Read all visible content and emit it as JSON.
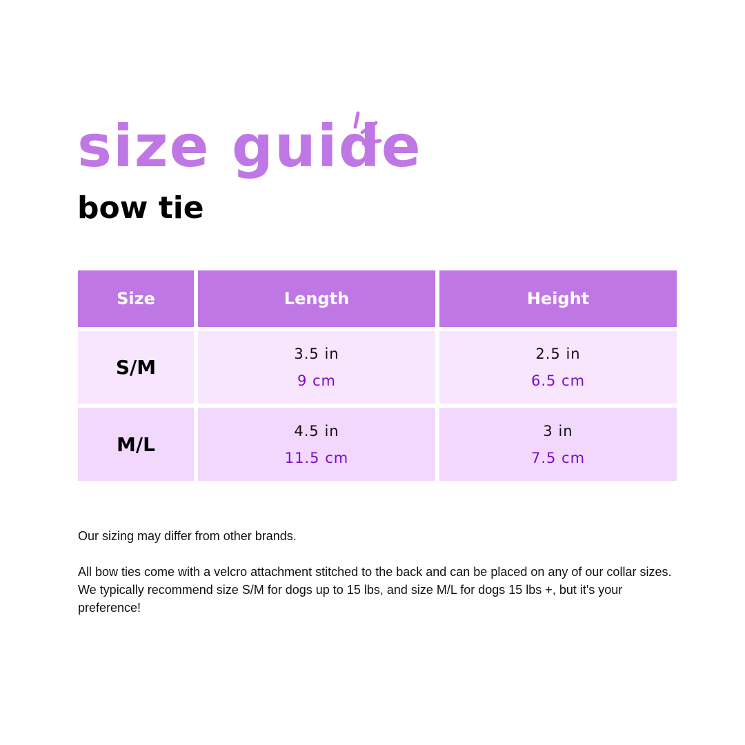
{
  "title": "size guide",
  "subtitle": "bow tie",
  "colors": {
    "accent": "#c077e6",
    "row_light": "#f7e6fd",
    "row_mid": "#f1d8fc",
    "metric_text": "#7a0ccc"
  },
  "table": {
    "headers": [
      "Size",
      "Length",
      "Height"
    ],
    "rows": [
      {
        "size": "S/M",
        "length_in": "3.5 in",
        "length_cm": "9 cm",
        "height_in": "2.5 in",
        "height_cm": "6.5 cm"
      },
      {
        "size": "M/L",
        "length_in": "4.5 in",
        "length_cm": "11.5 cm",
        "height_in": "3 in",
        "height_cm": "7.5 cm"
      }
    ]
  },
  "notes": [
    "Our sizing may differ from other brands.",
    "All bow ties come with a velcro attachment stitched to the back and can be placed on any of our collar sizes.  We typically recommend size S/M for dogs up to 15 lbs, and size M/L for dogs 15 lbs +, but it's your preference!"
  ]
}
